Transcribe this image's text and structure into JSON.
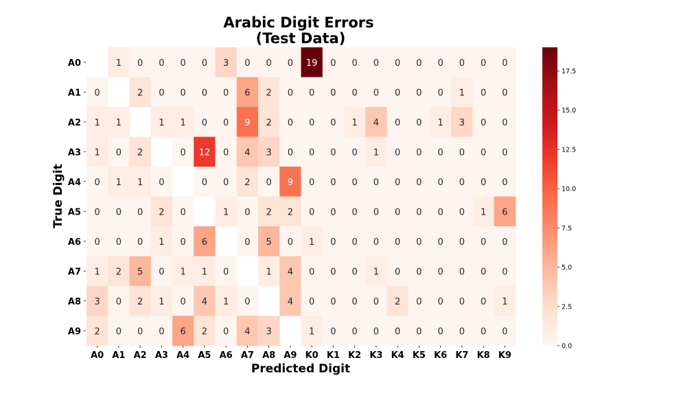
{
  "chart_data": {
    "type": "heatmap",
    "title_lines": [
      "Arabic Digit Errors",
      "(Test Data)"
    ],
    "xlabel": "Predicted Digit",
    "ylabel": "True Digit",
    "x_categories": [
      "A0",
      "A1",
      "A2",
      "A3",
      "A4",
      "A5",
      "A6",
      "A7",
      "A8",
      "A9",
      "K0",
      "K1",
      "K2",
      "K3",
      "K4",
      "K5",
      "K6",
      "K7",
      "K8",
      "K9"
    ],
    "y_categories": [
      "A0",
      "A1",
      "A2",
      "A3",
      "A4",
      "A5",
      "A6",
      "A7",
      "A8",
      "A9"
    ],
    "values": [
      [
        null,
        1,
        0,
        0,
        0,
        0,
        3,
        0,
        0,
        0,
        19,
        0,
        0,
        0,
        0,
        0,
        0,
        0,
        0,
        0
      ],
      [
        0,
        null,
        2,
        0,
        0,
        0,
        0,
        6,
        2,
        0,
        0,
        0,
        0,
        0,
        0,
        0,
        0,
        1,
        0,
        0
      ],
      [
        1,
        1,
        null,
        1,
        1,
        0,
        0,
        9,
        2,
        0,
        0,
        0,
        1,
        4,
        0,
        0,
        1,
        3,
        0,
        0
      ],
      [
        1,
        0,
        2,
        null,
        0,
        12,
        0,
        4,
        3,
        0,
        0,
        0,
        0,
        1,
        0,
        0,
        0,
        0,
        0,
        0
      ],
      [
        0,
        1,
        1,
        0,
        null,
        0,
        0,
        2,
        0,
        9,
        0,
        0,
        0,
        0,
        0,
        0,
        0,
        0,
        0,
        0
      ],
      [
        0,
        0,
        0,
        2,
        0,
        null,
        1,
        0,
        2,
        2,
        0,
        0,
        0,
        0,
        0,
        0,
        0,
        0,
        1,
        6
      ],
      [
        0,
        0,
        0,
        1,
        0,
        6,
        null,
        0,
        5,
        0,
        1,
        0,
        0,
        0,
        0,
        0,
        0,
        0,
        0,
        0
      ],
      [
        1,
        2,
        5,
        0,
        1,
        1,
        0,
        null,
        1,
        4,
        0,
        0,
        0,
        1,
        0,
        0,
        0,
        0,
        0,
        0
      ],
      [
        3,
        0,
        2,
        1,
        0,
        4,
        1,
        0,
        null,
        4,
        0,
        0,
        0,
        0,
        2,
        0,
        0,
        0,
        0,
        1
      ],
      [
        2,
        0,
        0,
        0,
        6,
        2,
        0,
        4,
        3,
        null,
        1,
        0,
        0,
        0,
        0,
        0,
        0,
        0,
        0,
        0
      ]
    ],
    "colormap": "Reds",
    "colorbar": {
      "vmin": 0,
      "vmax": 19,
      "ticks": [
        "0.0",
        "2.5",
        "5.0",
        "7.5",
        "10.0",
        "12.5",
        "15.0",
        "17.5"
      ]
    },
    "grid": false
  }
}
